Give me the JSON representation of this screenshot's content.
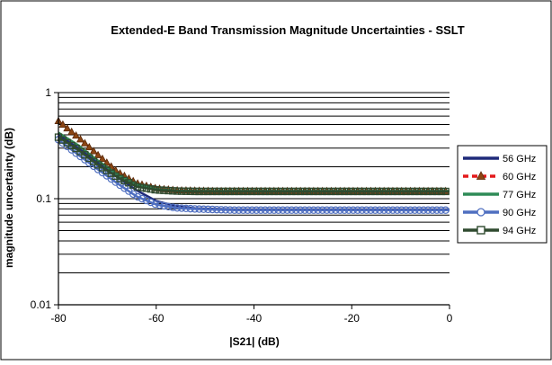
{
  "chart_data": {
    "type": "line",
    "title": "Extended-E Band Transmission Magnitude Uncertainties - SSLT",
    "xlabel": "|S21| (dB)",
    "ylabel": "magnitude uncertainty (dB)",
    "xlim": [
      -80,
      0
    ],
    "ylim": [
      0.01,
      1
    ],
    "yscale": "log",
    "grid": true,
    "legend_position": "right",
    "x_ticks": [
      "-80",
      "-60",
      "-40",
      "-20",
      "0"
    ],
    "y_ticks": [
      "0.01",
      "0.1",
      "1"
    ],
    "x": [
      -80,
      -76,
      -72,
      -68,
      -64,
      -60,
      -56,
      -52,
      -48,
      -44,
      -40,
      -36,
      -32,
      -28,
      -24,
      -20,
      -16,
      -12,
      -8,
      -4,
      0
    ],
    "series": [
      {
        "name": "56 GHz",
        "color": "#1f2a7a",
        "marker": "none",
        "dash": "solid",
        "values": [
          0.4,
          0.3,
          0.22,
          0.16,
          0.12,
          0.095,
          0.085,
          0.081,
          0.08,
          0.079,
          0.079,
          0.079,
          0.079,
          0.079,
          0.079,
          0.079,
          0.079,
          0.079,
          0.079,
          0.079,
          0.079
        ]
      },
      {
        "name": "60 GHz",
        "color": "#e41a1c",
        "marker": "triangle",
        "dash": "dashed",
        "values": [
          0.54,
          0.38,
          0.26,
          0.18,
          0.14,
          0.125,
          0.12,
          0.119,
          0.118,
          0.118,
          0.118,
          0.118,
          0.118,
          0.118,
          0.118,
          0.118,
          0.118,
          0.118,
          0.118,
          0.118,
          0.118
        ]
      },
      {
        "name": "77 GHz",
        "color": "#2e8b57",
        "marker": "none",
        "dash": "solid",
        "values": [
          0.42,
          0.32,
          0.23,
          0.17,
          0.135,
          0.123,
          0.119,
          0.118,
          0.118,
          0.118,
          0.118,
          0.118,
          0.118,
          0.118,
          0.118,
          0.118,
          0.118,
          0.118,
          0.118,
          0.118,
          0.118
        ]
      },
      {
        "name": "90 GHz",
        "color": "#4f6fc0",
        "marker": "circle",
        "dash": "solid",
        "values": [
          0.36,
          0.26,
          0.19,
          0.14,
          0.105,
          0.088,
          0.082,
          0.08,
          0.079,
          0.078,
          0.078,
          0.078,
          0.078,
          0.078,
          0.078,
          0.078,
          0.078,
          0.078,
          0.078,
          0.078,
          0.078
        ]
      },
      {
        "name": "94 GHz",
        "color": "#2f4a2f",
        "marker": "square",
        "dash": "solid",
        "values": [
          0.38,
          0.29,
          0.21,
          0.16,
          0.13,
          0.121,
          0.118,
          0.117,
          0.117,
          0.117,
          0.117,
          0.117,
          0.117,
          0.117,
          0.117,
          0.117,
          0.117,
          0.117,
          0.117,
          0.117,
          0.117
        ]
      }
    ]
  }
}
